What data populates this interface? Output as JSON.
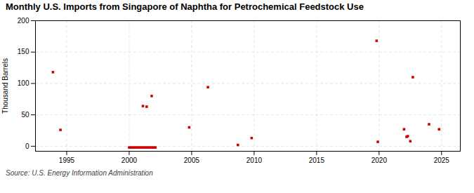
{
  "chart_data": {
    "type": "scatter",
    "title": "Monthly U.S. Imports from Singapore of Naphtha for Petrochemical Feedstock Use",
    "ylabel": "Thousand Barrels",
    "annotations": [
      "Source: U.S. Energy Information Administration"
    ],
    "x": [
      1993.9,
      1994.5,
      2001.1,
      2001.4,
      2001.8,
      2004.8,
      2006.3,
      2008.7,
      2009.8,
      2019.8,
      2019.9,
      2022.0,
      2022.2,
      2022.3,
      2022.5,
      2022.7,
      2024.0,
      2024.8,
      2000.0,
      2000.15,
      2000.3,
      2000.45,
      2000.6,
      2000.75,
      2000.9,
      2001.05,
      2001.2,
      2001.35,
      2001.5,
      2001.65,
      2001.8,
      2001.95,
      2002.1
    ],
    "values": [
      118,
      26,
      64,
      63,
      80,
      30,
      94,
      2,
      13,
      168,
      7,
      27,
      15,
      16,
      8,
      110,
      35,
      27,
      -2,
      -2,
      -2,
      -2,
      -2,
      -2,
      -2,
      -2,
      -2,
      -2,
      -2,
      -2,
      -2,
      -2,
      -2
    ],
    "color": "#cc0000",
    "marker": "square",
    "xlim": [
      1992.5,
      2026.5
    ],
    "xticks": [
      1995,
      2000,
      2005,
      2010,
      2015,
      2020,
      2025
    ],
    "ylim": [
      -8,
      200
    ],
    "yticks": [
      0,
      50,
      100,
      150,
      200
    ],
    "grid": true
  }
}
